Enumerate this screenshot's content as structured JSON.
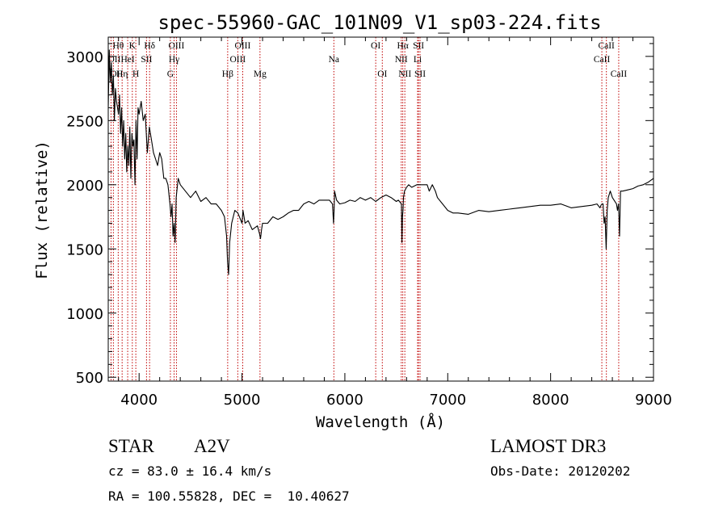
{
  "chart_data": {
    "type": "line",
    "title": "spec-55960-GAC_101N09_V1_sp03-224.fits",
    "xlabel": "Wavelength (Å)",
    "ylabel": "Flux (relative)",
    "xlim": [
      3700,
      9000
    ],
    "ylim": [
      470,
      3150
    ],
    "x_ticks": [
      4000,
      5000,
      6000,
      7000,
      8000,
      9000
    ],
    "y_ticks": [
      500,
      1000,
      1500,
      2000,
      2500,
      3000
    ],
    "x_minor_step": 200,
    "y_minor_step": 100,
    "series": [
      {
        "name": "spectrum",
        "color": "#000000",
        "x": [
          3700,
          3710,
          3720,
          3730,
          3740,
          3750,
          3760,
          3770,
          3780,
          3790,
          3800,
          3810,
          3820,
          3830,
          3840,
          3850,
          3860,
          3870,
          3880,
          3890,
          3900,
          3910,
          3920,
          3930,
          3940,
          3950,
          3960,
          3970,
          3980,
          3990,
          4000,
          4020,
          4040,
          4060,
          4080,
          4100,
          4120,
          4140,
          4160,
          4180,
          4200,
          4220,
          4240,
          4260,
          4280,
          4300,
          4310,
          4320,
          4330,
          4340,
          4350,
          4360,
          4380,
          4400,
          4450,
          4500,
          4550,
          4600,
          4650,
          4700,
          4750,
          4800,
          4830,
          4850,
          4860,
          4870,
          4880,
          4900,
          4930,
          4960,
          5000,
          5010,
          5030,
          5060,
          5100,
          5150,
          5170,
          5180,
          5190,
          5200,
          5250,
          5300,
          5350,
          5400,
          5450,
          5500,
          5550,
          5600,
          5650,
          5700,
          5750,
          5800,
          5850,
          5880,
          5890,
          5895,
          5900,
          5920,
          5950,
          6000,
          6050,
          6100,
          6150,
          6200,
          6250,
          6300,
          6350,
          6400,
          6450,
          6500,
          6520,
          6550,
          6555,
          6560,
          6565,
          6570,
          6580,
          6600,
          6620,
          6650,
          6700,
          6750,
          6800,
          6820,
          6850,
          6880,
          6900,
          6950,
          7000,
          7050,
          7100,
          7200,
          7300,
          7400,
          7500,
          7600,
          7700,
          7800,
          7900,
          8000,
          8100,
          8200,
          8300,
          8400,
          8450,
          8480,
          8490,
          8500,
          8510,
          8520,
          8530,
          8540,
          8550,
          8560,
          8580,
          8600,
          8640,
          8650,
          8660,
          8670,
          8680,
          8700,
          8750,
          8800,
          8850,
          8900,
          8950,
          9000
        ],
        "y": [
          2600,
          3050,
          2800,
          2950,
          2700,
          2850,
          2500,
          2750,
          2650,
          2600,
          2550,
          2700,
          2400,
          2600,
          2300,
          2500,
          2200,
          2400,
          2100,
          2300,
          2150,
          2450,
          2050,
          2400,
          2300,
          2350,
          2000,
          2500,
          2200,
          2600,
          2550,
          2650,
          2500,
          2550,
          2250,
          2450,
          2350,
          2250,
          2200,
          2150,
          2250,
          2200,
          2050,
          2050,
          2000,
          1850,
          1750,
          1850,
          1600,
          1700,
          1550,
          1900,
          2050,
          2000,
          1950,
          1900,
          1950,
          1870,
          1900,
          1850,
          1850,
          1800,
          1750,
          1600,
          1400,
          1300,
          1550,
          1700,
          1800,
          1780,
          1700,
          1800,
          1700,
          1720,
          1650,
          1680,
          1620,
          1580,
          1650,
          1700,
          1700,
          1750,
          1730,
          1750,
          1780,
          1800,
          1800,
          1850,
          1870,
          1850,
          1880,
          1880,
          1880,
          1850,
          1700,
          1800,
          1950,
          1880,
          1850,
          1860,
          1880,
          1870,
          1900,
          1880,
          1900,
          1870,
          1900,
          1920,
          1900,
          1870,
          1880,
          1850,
          1550,
          1750,
          1800,
          1900,
          1950,
          1980,
          2000,
          1980,
          2000,
          2000,
          2000,
          1950,
          2000,
          1950,
          1900,
          1850,
          1800,
          1780,
          1780,
          1770,
          1800,
          1790,
          1800,
          1810,
          1820,
          1830,
          1840,
          1840,
          1850,
          1820,
          1830,
          1840,
          1850,
          1820,
          1840,
          1850,
          1850,
          1700,
          1750,
          1500,
          1800,
          1900,
          1950,
          1900,
          1850,
          1800,
          1850,
          1600,
          1950,
          1950,
          1960,
          1970,
          1990,
          2000,
          2020,
          2050
        ]
      }
    ],
    "lines": [
      {
        "wl": 3727,
        "label": "OII",
        "row": 2,
        "side": "left"
      },
      {
        "wl": 3750,
        "label": "OII",
        "row": 3,
        "side": "left"
      },
      {
        "wl": 3797,
        "label": "Hθ",
        "row": 1,
        "side": "center"
      },
      {
        "wl": 3835,
        "label": "Hη",
        "row": 3,
        "side": "center"
      },
      {
        "wl": 3889,
        "label": "HeI",
        "row": 2,
        "side": "center"
      },
      {
        "wl": 3934,
        "label": "K",
        "row": 1,
        "side": "center"
      },
      {
        "wl": 3968,
        "label": "H",
        "row": 3,
        "side": "center"
      },
      {
        "wl": 4072,
        "label": "SII",
        "row": 2,
        "side": "center"
      },
      {
        "wl": 4102,
        "label": "Hδ",
        "row": 1,
        "side": "center"
      },
      {
        "wl": 4304,
        "label": "G",
        "row": 3,
        "side": "center"
      },
      {
        "wl": 4340,
        "label": "Hγ",
        "row": 2,
        "side": "center"
      },
      {
        "wl": 4363,
        "label": "OIII",
        "row": 1,
        "side": "center"
      },
      {
        "wl": 4861,
        "label": "Hβ",
        "row": 3,
        "side": "center"
      },
      {
        "wl": 4959,
        "label": "OIII",
        "row": 2,
        "side": "center"
      },
      {
        "wl": 5007,
        "label": "OIII",
        "row": 1,
        "side": "center"
      },
      {
        "wl": 5175,
        "label": "Mg",
        "row": 3,
        "side": "center"
      },
      {
        "wl": 5893,
        "label": "Na",
        "row": 2,
        "side": "center"
      },
      {
        "wl": 6300,
        "label": "OI",
        "row": 1,
        "side": "center"
      },
      {
        "wl": 6364,
        "label": "OI",
        "row": 3,
        "side": "center"
      },
      {
        "wl": 6548,
        "label": "NII",
        "row": 2,
        "side": "center"
      },
      {
        "wl": 6563,
        "label": "Hα",
        "row": 1,
        "side": "center"
      },
      {
        "wl": 6583,
        "label": "NII",
        "row": 3,
        "side": "center"
      },
      {
        "wl": 6707,
        "label": "Li",
        "row": 2,
        "side": "center"
      },
      {
        "wl": 6716,
        "label": "SII",
        "row": 1,
        "side": "center"
      },
      {
        "wl": 6731,
        "label": "SII",
        "row": 3,
        "side": "center"
      },
      {
        "wl": 8498,
        "label": "CaII",
        "row": 2,
        "side": "center"
      },
      {
        "wl": 8542,
        "label": "CaII",
        "row": 1,
        "side": "center"
      },
      {
        "wl": 8662,
        "label": "CaII",
        "row": 3,
        "side": "center"
      }
    ],
    "line_color": "#c00000"
  },
  "info": {
    "object_type": "STAR",
    "subclass": "A2V",
    "survey": "LAMOST DR3",
    "cz": "cz = 83.0 ± 16.4 km/s",
    "obs_date": "Obs-Date: 20120202",
    "coords": "RA = 100.55828, DEC =  10.40627"
  }
}
